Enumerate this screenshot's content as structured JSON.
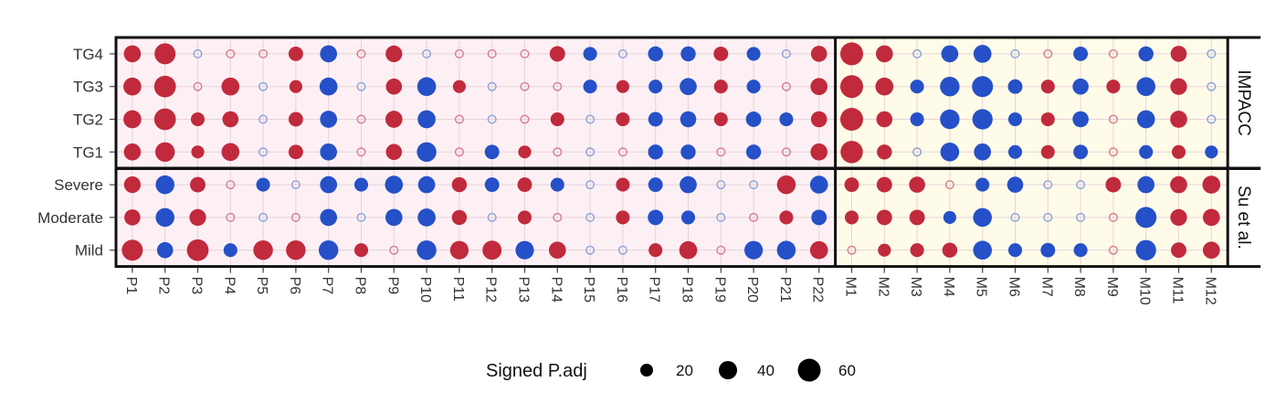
{
  "chart_data": {
    "type": "dotplot",
    "rows": [
      "TG4",
      "TG3",
      "TG2",
      "TG1",
      "Severe",
      "Moderate",
      "Mild"
    ],
    "row_groups": [
      {
        "name": "IMPACC",
        "rows": [
          "TG4",
          "TG3",
          "TG2",
          "TG1"
        ]
      },
      {
        "name": "Su et al.",
        "rows": [
          "Severe",
          "Moderate",
          "Mild"
        ]
      }
    ],
    "columns": [
      "P1",
      "P2",
      "P3",
      "P4",
      "P5",
      "P6",
      "P7",
      "P8",
      "P9",
      "P10",
      "P11",
      "P12",
      "P13",
      "P14",
      "P15",
      "P16",
      "P17",
      "P18",
      "P19",
      "P20",
      "P21",
      "P22",
      "M1",
      "M2",
      "M3",
      "M4",
      "M5",
      "M6",
      "M7",
      "M8",
      "M9",
      "M10",
      "M11",
      "M12"
    ],
    "column_groups": [
      {
        "prefix": "P",
        "background": "#fdf0f4"
      },
      {
        "prefix": "M",
        "background": "#fefbe9"
      }
    ],
    "values": {
      "TG4": [
        30,
        55,
        -5,
        5,
        5,
        18,
        -30,
        5,
        28,
        -5,
        5,
        5,
        5,
        22,
        -15,
        -5,
        -20,
        -20,
        18,
        -15,
        -8,
        25,
        75,
        30,
        -5,
        -30,
        -35,
        -5,
        5,
        -18,
        5,
        -20,
        25,
        -5
      ],
      "TG3": [
        35,
        60,
        5,
        35,
        -8,
        12,
        -35,
        -5,
        25,
        -40,
        12,
        -5,
        5,
        5,
        -15,
        12,
        -15,
        -30,
        15,
        -15,
        5,
        30,
        70,
        35,
        -15,
        -45,
        -55,
        -18,
        15,
        -25,
        15,
        -40,
        28,
        -8
      ],
      "TG2": [
        35,
        60,
        15,
        25,
        -5,
        18,
        -30,
        5,
        30,
        -35,
        5,
        -5,
        5,
        15,
        -8,
        15,
        -18,
        -25,
        15,
        -22,
        -15,
        25,
        80,
        25,
        -15,
        -45,
        -50,
        -15,
        15,
        -25,
        5,
        -35,
        30,
        -5
      ],
      "TG1": [
        30,
        45,
        12,
        35,
        -5,
        18,
        -30,
        5,
        25,
        -45,
        5,
        -18,
        12,
        5,
        -5,
        5,
        -20,
        -20,
        5,
        -20,
        5,
        30,
        65,
        20,
        -5,
        -40,
        -30,
        -15,
        15,
        -18,
        5,
        -15,
        15,
        -12
      ],
      "Severe": [
        28,
        -40,
        22,
        5,
        -15,
        -5,
        -30,
        -15,
        -35,
        -30,
        20,
        -18,
        18,
        -15,
        -5,
        15,
        -18,
        -30,
        -5,
        -5,
        40,
        -35,
        18,
        22,
        25,
        5,
        -15,
        -25,
        -5,
        -5,
        22,
        -30,
        30,
        35
      ],
      "Moderate": [
        25,
        -40,
        28,
        5,
        -5,
        5,
        -30,
        -5,
        -30,
        -35,
        20,
        -5,
        15,
        5,
        -5,
        15,
        -22,
        -15,
        -5,
        5,
        15,
        -22,
        15,
        22,
        22,
        -12,
        -40,
        -5,
        -5,
        -5,
        5,
        -55,
        28,
        30
      ],
      "Mild": [
        55,
        -25,
        60,
        -15,
        45,
        45,
        -45,
        15,
        5,
        -45,
        38,
        42,
        -38,
        30,
        -5,
        -5,
        15,
        35,
        5,
        -38,
        -40,
        35,
        5,
        12,
        15,
        20,
        -40,
        -15,
        -18,
        -15,
        5,
        -50,
        22,
        30
      ]
    },
    "negative_values_meaning": "blue = negative sign, red = positive sign; values below ~10 drawn as hollow circles",
    "colors": {
      "positive": "#c12a3c",
      "negative": "#2550c8",
      "positive_light": "#d77c8b",
      "negative_light": "#8aa0dc"
    },
    "legend": {
      "title": "Signed P.adj",
      "sizes": [
        20,
        40,
        60
      ],
      "labels": [
        "20",
        "40",
        "60"
      ],
      "placement": "bottom"
    }
  }
}
